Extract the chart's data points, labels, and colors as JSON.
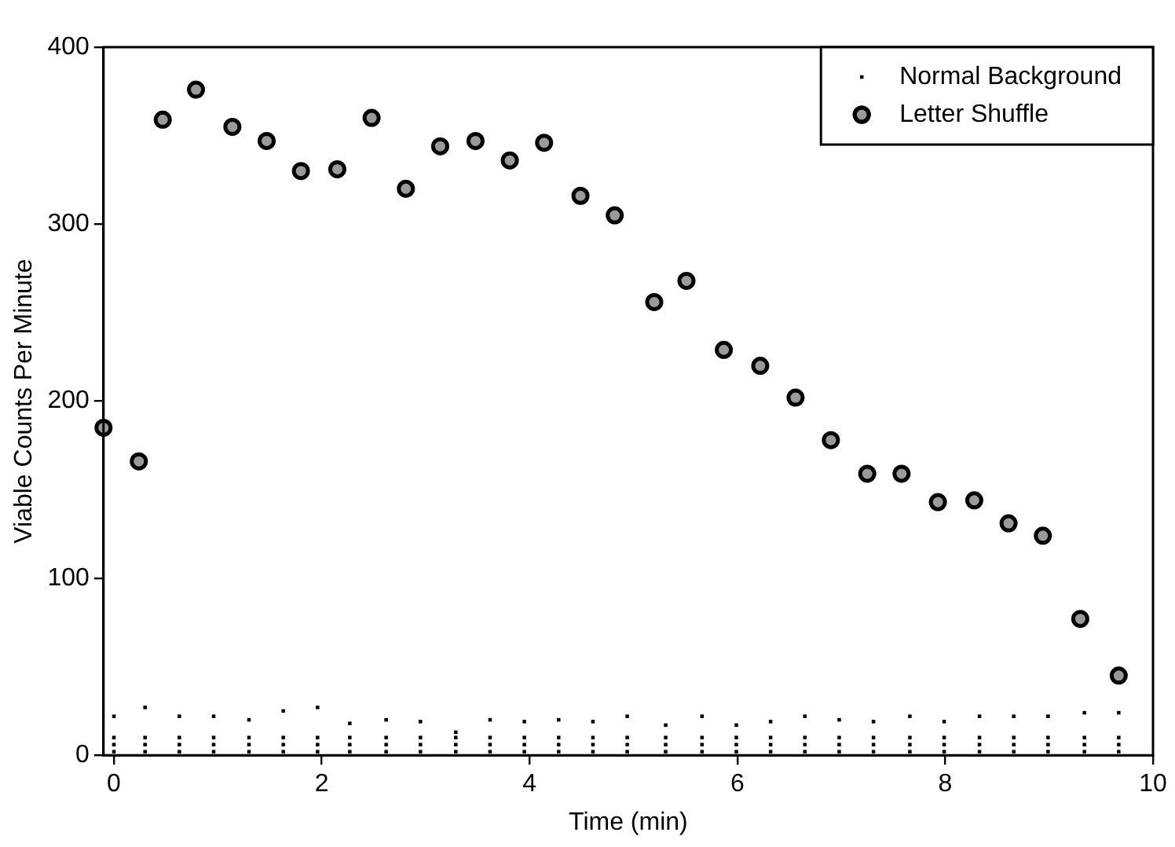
{
  "chart_data": {
    "type": "scatter",
    "xlabel": "Time (min)",
    "ylabel": "Viable Counts Per Minute",
    "xlim": [
      -0.1,
      10
    ],
    "xticks": [
      0,
      2,
      4,
      6,
      8,
      10
    ],
    "ylim": [
      0,
      400
    ],
    "yticks": [
      0,
      100,
      200,
      300,
      400
    ],
    "grid": false,
    "legend": "top right",
    "series": [
      {
        "name": "Normal Background",
        "color": "#000000",
        "marker": "square",
        "x": [
          0,
          0,
          0,
          0,
          0.3,
          0.3,
          0.3,
          0.3,
          0.63,
          0.63,
          0.63,
          0.63,
          0.96,
          0.96,
          0.96,
          0.96,
          1.3,
          1.3,
          1.3,
          1.3,
          1.63,
          1.63,
          1.63,
          1.63,
          1.96,
          1.96,
          1.96,
          1.96,
          2.27,
          2.27,
          2.27,
          2.27,
          2.62,
          2.62,
          2.62,
          2.62,
          2.95,
          2.95,
          2.95,
          2.95,
          3.29,
          3.29,
          3.29,
          3.29,
          3.62,
          3.62,
          3.62,
          3.62,
          3.95,
          3.95,
          3.95,
          3.95,
          4.28,
          4.28,
          4.28,
          4.28,
          4.61,
          4.61,
          4.61,
          4.61,
          4.94,
          4.94,
          4.94,
          4.94,
          5.31,
          5.31,
          5.31,
          5.31,
          5.66,
          5.66,
          5.66,
          5.66,
          5.99,
          5.99,
          5.99,
          5.99,
          6.32,
          6.32,
          6.32,
          6.32,
          6.65,
          6.65,
          6.65,
          6.65,
          6.98,
          6.98,
          6.98,
          6.98,
          7.31,
          7.31,
          7.31,
          7.31,
          7.66,
          7.66,
          7.66,
          7.66,
          7.99,
          7.99,
          7.99,
          7.99,
          8.33,
          8.33,
          8.33,
          8.33,
          8.66,
          8.66,
          8.66,
          8.66,
          8.99,
          8.99,
          8.99,
          8.99,
          9.34,
          9.34,
          9.34,
          9.34,
          9.67,
          9.67,
          9.67,
          9.67
        ],
        "values": [
          2,
          6,
          10,
          22,
          2,
          6,
          10,
          27,
          2,
          6,
          10,
          22,
          2,
          6,
          10,
          22,
          2,
          6,
          10,
          20,
          2,
          6,
          10,
          25,
          2,
          6,
          10,
          27,
          2,
          6,
          10,
          18,
          2,
          6,
          10,
          20,
          2,
          6,
          10,
          19,
          2,
          6,
          10,
          13,
          2,
          6,
          10,
          20,
          2,
          6,
          10,
          19,
          2,
          6,
          10,
          20,
          2,
          6,
          10,
          19,
          2,
          6,
          10,
          22,
          2,
          6,
          10,
          17,
          2,
          6,
          10,
          22,
          2,
          6,
          10,
          17,
          2,
          6,
          10,
          19,
          2,
          6,
          10,
          22,
          2,
          6,
          10,
          20,
          2,
          6,
          10,
          19,
          2,
          6,
          10,
          22,
          2,
          6,
          10,
          19,
          2,
          6,
          10,
          22,
          2,
          6,
          10,
          22,
          2,
          6,
          10,
          22,
          2,
          6,
          10,
          24,
          2,
          6,
          10,
          24
        ]
      },
      {
        "name": "Letter Shuffle",
        "color": "#000000",
        "marker": "circle",
        "x": [
          -0.1,
          0.24,
          0.47,
          0.79,
          1.14,
          1.47,
          1.8,
          2.15,
          2.48,
          2.81,
          3.14,
          3.48,
          3.81,
          4.14,
          4.49,
          4.82,
          5.2,
          5.51,
          5.87,
          6.22,
          6.56,
          6.9,
          7.25,
          7.58,
          7.93,
          8.28,
          8.61,
          8.94,
          9.3,
          9.67
        ],
        "values": [
          185,
          166,
          359,
          376,
          355,
          347,
          330,
          331,
          360,
          320,
          344,
          347,
          336,
          346,
          316,
          305,
          256,
          268,
          229,
          220,
          202,
          178,
          159,
          159,
          143,
          144,
          131,
          124,
          77,
          45
        ]
      }
    ]
  }
}
